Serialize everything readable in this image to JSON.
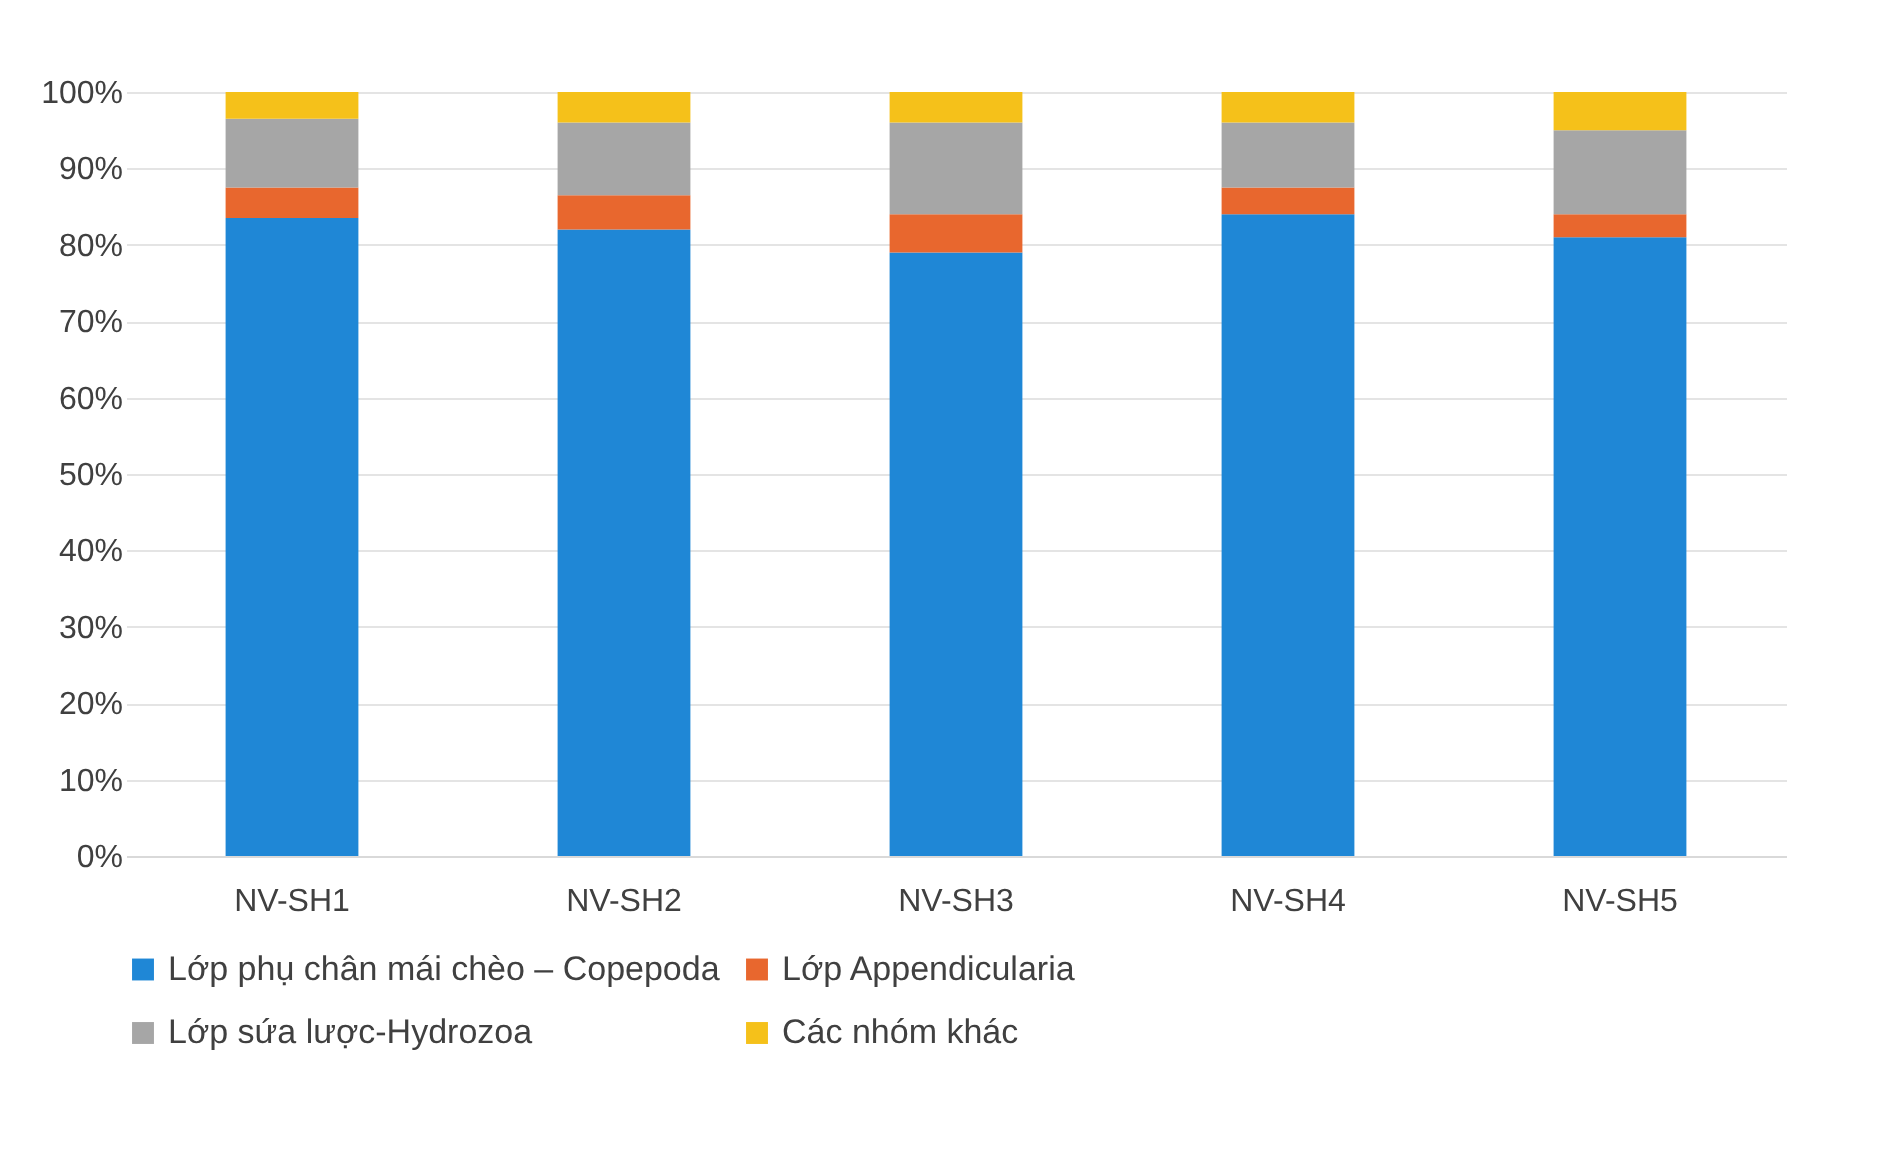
{
  "chart_data": {
    "type": "bar",
    "stacked": true,
    "categories": [
      "NV-SH1",
      "NV-SH2",
      "NV-SH3",
      "NV-SH4",
      "NV-SH5"
    ],
    "series": [
      {
        "name": "Lớp phụ chân mái chèo – Copepoda",
        "color": "#1f87d6",
        "values": [
          83.5,
          82,
          79,
          84,
          81
        ]
      },
      {
        "name": "Lớp Appendicularia",
        "color": "#e8672e",
        "values": [
          4,
          4.5,
          5,
          3.5,
          3
        ]
      },
      {
        "name": "Lớp sứa lược-Hydrozoa",
        "color": "#a6a6a6",
        "values": [
          9,
          9.5,
          12,
          8.5,
          11
        ]
      },
      {
        "name": "Các nhóm khác",
        "color": "#f5c11a",
        "values": [
          3.5,
          4,
          4,
          4,
          5
        ]
      }
    ],
    "ylim": [
      0,
      100
    ],
    "yticks": [
      {
        "value": 0,
        "label": "0%"
      },
      {
        "value": 10,
        "label": "10%"
      },
      {
        "value": 20,
        "label": "20%"
      },
      {
        "value": 30,
        "label": "30%"
      },
      {
        "value": 40,
        "label": "40%"
      },
      {
        "value": 50,
        "label": "50%"
      },
      {
        "value": 60,
        "label": "60%"
      },
      {
        "value": 70,
        "label": "70%"
      },
      {
        "value": 80,
        "label": "80%"
      },
      {
        "value": 90,
        "label": "90%"
      },
      {
        "value": 100,
        "label": "100%"
      }
    ],
    "grid": "y",
    "legend": "bottom"
  }
}
